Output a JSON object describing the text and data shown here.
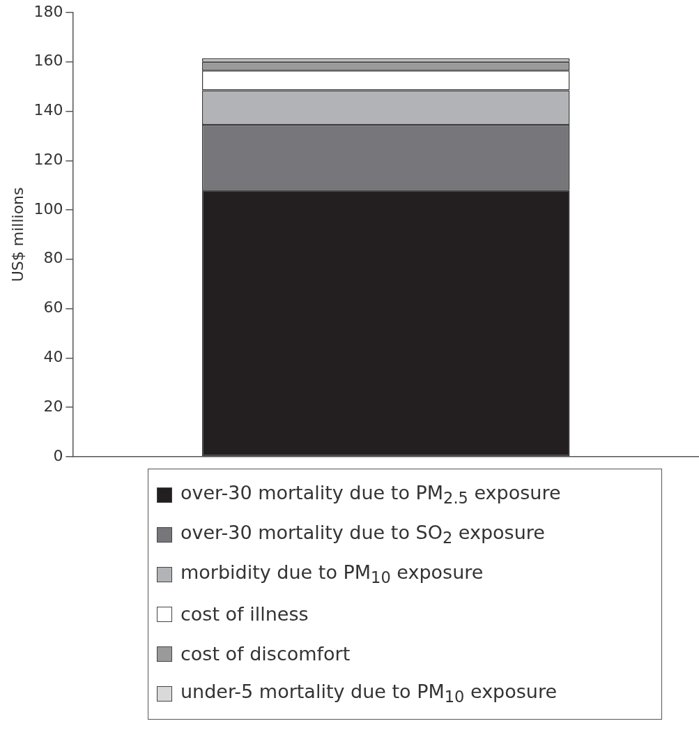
{
  "chart_data": {
    "type": "bar",
    "ylabel": "US$ millions",
    "categories": [
      null
    ],
    "stacked": true,
    "ylim": [
      0,
      180
    ],
    "yticks": [
      0,
      20,
      40,
      60,
      80,
      100,
      120,
      140,
      160,
      180
    ],
    "grid": false,
    "legend": "bottom",
    "series": [
      {
        "name": "over-30 mortality due to PM$_{2.5}$ exposure",
        "color": "#231f20",
        "values": [
          108
        ]
      },
      {
        "name": "over-30 mortality due to SO$_{2}$ exposure",
        "color": "#77767b",
        "values": [
          26.5
        ]
      },
      {
        "name": "morbidity due to PM$_{10}$ exposure",
        "color": "#b1b3b6",
        "values": [
          14
        ]
      },
      {
        "name": "cost of illness",
        "color": "#ffffff",
        "values": [
          8
        ]
      },
      {
        "name": "cost of discomfort",
        "color": "#9a9a9a",
        "values": [
          3.5
        ]
      },
      {
        "name": "under-5 mortality due to PM$_{10}$ exposure",
        "color": "#d9d9d9",
        "values": [
          1.5
        ]
      }
    ]
  }
}
